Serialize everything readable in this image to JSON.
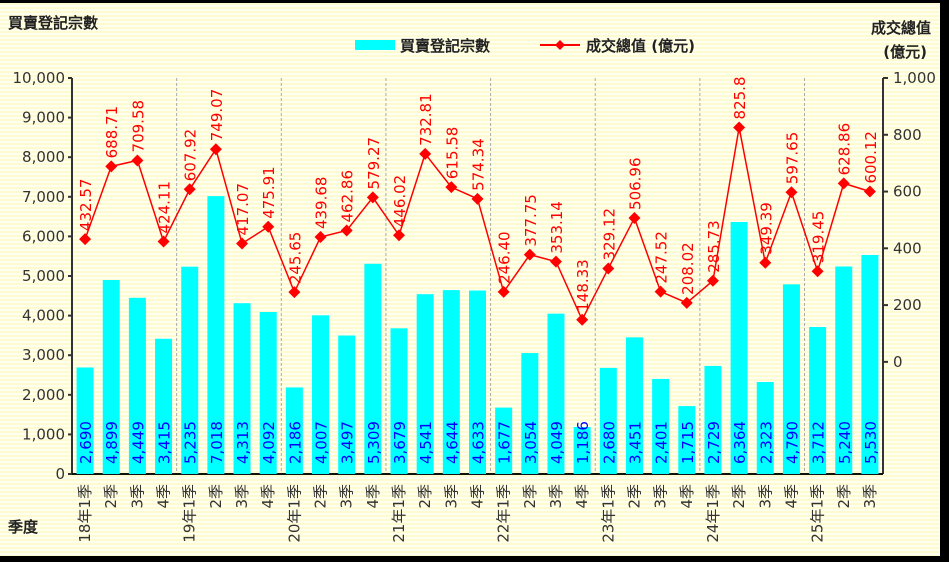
{
  "chart_data": {
    "type": "bar+line",
    "title": "",
    "ylabel_left": "買賣登記宗數",
    "ylabel_right_line1": "成交總值",
    "ylabel_right_line2": "(億元)",
    "xlabel": "季度",
    "legend": {
      "position": "top-center",
      "entries": [
        "買賣登記宗數",
        "成交總值 (億元)"
      ]
    },
    "categories": [
      "18年1季",
      "2季",
      "3季",
      "4季",
      "19年1季",
      "2季",
      "3季",
      "4季",
      "20年1季",
      "2季",
      "3季",
      "4季",
      "21年1季",
      "2季",
      "3季",
      "4季",
      "22年1季",
      "2季",
      "3季",
      "4季",
      "23年1季",
      "2季",
      "3季",
      "4季",
      "24年1季",
      "2季",
      "3季",
      "4季",
      "25年1季",
      "2季",
      "3季"
    ],
    "series": [
      {
        "name": "買賣登記宗數",
        "type": "bar",
        "axis": "left",
        "color": "#00ffff",
        "label_color": "#0000ff",
        "values": [
          2690,
          4899,
          4449,
          3415,
          5235,
          7018,
          4313,
          4092,
          2186,
          4007,
          3497,
          5309,
          3679,
          4541,
          4644,
          4633,
          1677,
          3054,
          4049,
          1186,
          2680,
          3451,
          2401,
          1715,
          2729,
          6364,
          2323,
          4790,
          3712,
          5240,
          5530
        ],
        "labels": [
          "2,690",
          "4,899",
          "4,449",
          "3,415",
          "5,235",
          "7,018",
          "4,313",
          "4,092",
          "2,186",
          "4,007",
          "3,497",
          "5,309",
          "3,679",
          "4,541",
          "4,644",
          "4,633",
          "1,677",
          "3,054",
          "4,049",
          "1,186",
          "2,680",
          "3,451",
          "2,401",
          "1,715",
          "2,729",
          "6,364",
          "2,323",
          "4,790",
          "3,712",
          "5,240",
          "5,530"
        ]
      },
      {
        "name": "成交總值 (億元)",
        "type": "line",
        "axis": "right",
        "color": "#ff0000",
        "values": [
          432.57,
          688.71,
          709.58,
          424.11,
          607.92,
          749.07,
          417.07,
          475.91,
          245.65,
          439.68,
          462.86,
          579.27,
          446.02,
          732.81,
          615.58,
          574.34,
          246.4,
          377.75,
          353.14,
          148.33,
          329.12,
          506.96,
          247.52,
          208.02,
          285.73,
          825.8,
          349.39,
          597.65,
          319.45,
          628.86,
          600.12
        ],
        "labels": [
          "432.57",
          "688.71",
          "709.58",
          "424.11",
          "607.92",
          "749.07",
          "417.07",
          "475.91",
          "245.65",
          "439.68",
          "462.86",
          "579.27",
          "446.02",
          "732.81",
          "615.58",
          "574.34",
          "246.40",
          "377.75",
          "353.14",
          "148.33",
          "329.12",
          "506.96",
          "247.52",
          "208.02",
          "285.73",
          "825.8",
          "349.39",
          "597.65",
          "319.45",
          "628.86",
          "600.12"
        ]
      }
    ],
    "y_left": {
      "ylim": [
        0,
        10000
      ],
      "ticks": [
        "0",
        "1,000",
        "2,000",
        "3,000",
        "4,000",
        "5,000",
        "6,000",
        "7,000",
        "8,000",
        "9,000",
        "10,000"
      ]
    },
    "y_right": {
      "ylim": [
        -395,
        1000
      ],
      "ticks": [
        "0",
        "200",
        "400",
        "600",
        "800",
        "1,000"
      ]
    },
    "grid": false,
    "year_separators": true
  }
}
